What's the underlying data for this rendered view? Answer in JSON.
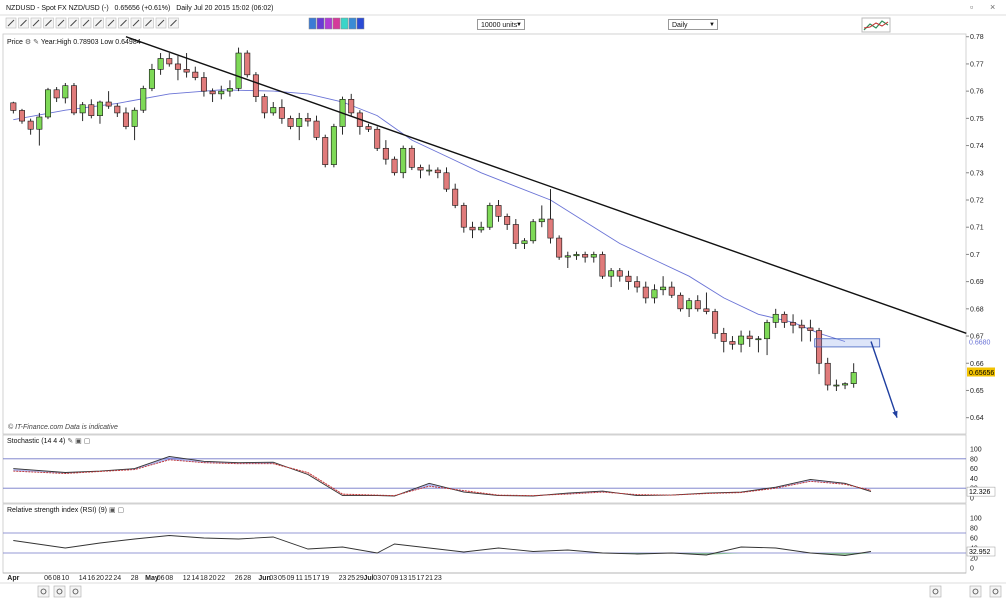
{
  "header": {
    "symbol": "NZDUSD - Spot FX NZD/USD (-)",
    "quote": "0.65656 (+0.61%)",
    "period_info": "Daily  Jul 20 2015 15:02 (06:02)"
  },
  "toolbar": {
    "units_value": "10000 units",
    "timeframe_value": "Daily",
    "tools": [
      "cursor-icon",
      "pointer-icon",
      "crosshair-icon",
      "line-icon",
      "hline-icon",
      "channel-icon",
      "text-icon",
      "fib-icon",
      "fan-icon",
      "gann-icon",
      "erase-icon",
      "palette-icon",
      "delete-icon",
      "settings-icon"
    ],
    "color_swatches": [
      "#3a7bd5",
      "#6a3ad5",
      "#b03ad5",
      "#d53a9a",
      "#3ad5c9",
      "#3a8bd5",
      "#2a4bd5"
    ]
  },
  "price_panel": {
    "label": "Price",
    "stats": "Year:High 0.78903 Low 0.64984",
    "watermark": "© IT-Finance.com  Data is indicative",
    "ma_value": "0.6680",
    "last_value": "0.65656"
  },
  "stoch_panel": {
    "label": "Stochastic (14 4 4)",
    "value": "12.326"
  },
  "rsi_panel": {
    "label": "Relative strength index (RSI) (9)",
    "value": "32.952"
  },
  "colors": {
    "bull": "#7ed957",
    "bear": "#e07b7b",
    "ma": "#6b74d6",
    "trend": "#111111",
    "arrow": "#1f3fa0",
    "current": "#f2c200"
  },
  "chart_data": {
    "type": "candlestick",
    "title": "NZDUSD - Spot FX NZD/USD (-)",
    "y_range": [
      0.634,
      0.781
    ],
    "y_ticks": [
      0.64,
      0.65,
      0.66,
      0.67,
      0.68,
      0.69,
      0.7,
      0.71,
      0.72,
      0.73,
      0.74,
      0.75,
      0.76,
      0.77,
      0.78
    ],
    "x_labels": [
      {
        "i": 0,
        "t": "Apr"
      },
      {
        "i": 4,
        "t": "06"
      },
      {
        "i": 5,
        "t": "08"
      },
      {
        "i": 6,
        "t": "10"
      },
      {
        "i": 8,
        "t": "14"
      },
      {
        "i": 9,
        "t": "16"
      },
      {
        "i": 10,
        "t": "20"
      },
      {
        "i": 11,
        "t": "22"
      },
      {
        "i": 12,
        "t": "24"
      },
      {
        "i": 14,
        "t": "28"
      },
      {
        "i": 16,
        "t": "May"
      },
      {
        "i": 17,
        "t": "06"
      },
      {
        "i": 18,
        "t": "08"
      },
      {
        "i": 20,
        "t": "12"
      },
      {
        "i": 21,
        "t": "14"
      },
      {
        "i": 22,
        "t": "18"
      },
      {
        "i": 23,
        "t": "20"
      },
      {
        "i": 24,
        "t": "22"
      },
      {
        "i": 26,
        "t": "26"
      },
      {
        "i": 27,
        "t": "28"
      },
      {
        "i": 29,
        "t": "Jun"
      },
      {
        "i": 30,
        "t": "03"
      },
      {
        "i": 31,
        "t": "05"
      },
      {
        "i": 32,
        "t": "09"
      },
      {
        "i": 33,
        "t": "11"
      },
      {
        "i": 34,
        "t": "15"
      },
      {
        "i": 35,
        "t": "17"
      },
      {
        "i": 36,
        "t": "19"
      },
      {
        "i": 38,
        "t": "23"
      },
      {
        "i": 39,
        "t": "25"
      },
      {
        "i": 40,
        "t": "29"
      },
      {
        "i": 41,
        "t": "Jul"
      },
      {
        "i": 42,
        "t": "03"
      },
      {
        "i": 43,
        "t": "07"
      },
      {
        "i": 44,
        "t": "09"
      },
      {
        "i": 45,
        "t": "13"
      },
      {
        "i": 46,
        "t": "15"
      },
      {
        "i": 47,
        "t": "17"
      },
      {
        "i": 48,
        "t": "21"
      },
      {
        "i": 49,
        "t": "23"
      }
    ],
    "candles": [
      [
        0.7557,
        0.7561,
        0.7518,
        0.7529
      ],
      [
        0.7529,
        0.7535,
        0.748,
        0.749
      ],
      [
        0.749,
        0.7499,
        0.744,
        0.746
      ],
      [
        0.746,
        0.752,
        0.74,
        0.7505
      ],
      [
        0.7505,
        0.7612,
        0.7497,
        0.7605
      ],
      [
        0.7605,
        0.7615,
        0.756,
        0.7575
      ],
      [
        0.7575,
        0.763,
        0.7555,
        0.762
      ],
      [
        0.762,
        0.763,
        0.7512,
        0.752
      ],
      [
        0.752,
        0.756,
        0.749,
        0.755
      ],
      [
        0.755,
        0.757,
        0.75,
        0.751
      ],
      [
        0.751,
        0.7565,
        0.748,
        0.756
      ],
      [
        0.756,
        0.76,
        0.7535,
        0.7545
      ],
      [
        0.7545,
        0.7555,
        0.7505,
        0.752
      ],
      [
        0.752,
        0.754,
        0.746,
        0.747
      ],
      [
        0.747,
        0.754,
        0.742,
        0.753
      ],
      [
        0.753,
        0.762,
        0.752,
        0.761
      ],
      [
        0.761,
        0.77,
        0.76,
        0.768
      ],
      [
        0.768,
        0.774,
        0.766,
        0.772
      ],
      [
        0.772,
        0.774,
        0.769,
        0.77
      ],
      [
        0.77,
        0.773,
        0.764,
        0.768
      ],
      [
        0.768,
        0.774,
        0.765,
        0.767
      ],
      [
        0.767,
        0.769,
        0.764,
        0.765
      ],
      [
        0.765,
        0.767,
        0.758,
        0.76
      ],
      [
        0.76,
        0.761,
        0.756,
        0.759
      ],
      [
        0.759,
        0.762,
        0.757,
        0.76
      ],
      [
        0.76,
        0.764,
        0.758,
        0.761
      ],
      [
        0.761,
        0.776,
        0.76,
        0.774
      ],
      [
        0.774,
        0.775,
        0.765,
        0.766
      ],
      [
        0.766,
        0.767,
        0.756,
        0.758
      ],
      [
        0.758,
        0.759,
        0.75,
        0.752
      ],
      [
        0.752,
        0.756,
        0.751,
        0.754
      ],
      [
        0.754,
        0.757,
        0.748,
        0.75
      ],
      [
        0.75,
        0.751,
        0.746,
        0.747
      ],
      [
        0.747,
        0.752,
        0.742,
        0.75
      ],
      [
        0.75,
        0.752,
        0.747,
        0.749
      ],
      [
        0.749,
        0.751,
        0.742,
        0.743
      ],
      [
        0.743,
        0.744,
        0.732,
        0.733
      ],
      [
        0.733,
        0.748,
        0.732,
        0.747
      ],
      [
        0.747,
        0.758,
        0.744,
        0.757
      ],
      [
        0.757,
        0.759,
        0.751,
        0.752
      ],
      [
        0.752,
        0.753,
        0.744,
        0.747
      ],
      [
        0.747,
        0.748,
        0.745,
        0.746
      ],
      [
        0.746,
        0.747,
        0.738,
        0.739
      ],
      [
        0.739,
        0.742,
        0.733,
        0.735
      ],
      [
        0.735,
        0.736,
        0.729,
        0.73
      ],
      [
        0.73,
        0.74,
        0.728,
        0.739
      ],
      [
        0.739,
        0.74,
        0.731,
        0.732
      ],
      [
        0.732,
        0.733,
        0.728,
        0.731
      ],
      [
        0.731,
        0.733,
        0.729,
        0.731
      ],
      [
        0.731,
        0.732,
        0.728,
        0.73
      ],
      [
        0.73,
        0.732,
        0.723,
        0.724
      ],
      [
        0.724,
        0.726,
        0.717,
        0.718
      ],
      [
        0.718,
        0.719,
        0.708,
        0.71
      ],
      [
        0.71,
        0.712,
        0.706,
        0.709
      ],
      [
        0.709,
        0.712,
        0.708,
        0.71
      ],
      [
        0.71,
        0.719,
        0.709,
        0.718
      ],
      [
        0.718,
        0.72,
        0.712,
        0.714
      ],
      [
        0.714,
        0.715,
        0.709,
        0.711
      ],
      [
        0.711,
        0.713,
        0.702,
        0.704
      ],
      [
        0.704,
        0.706,
        0.702,
        0.705
      ],
      [
        0.705,
        0.713,
        0.704,
        0.712
      ],
      [
        0.712,
        0.718,
        0.71,
        0.713
      ],
      [
        0.713,
        0.724,
        0.704,
        0.706
      ],
      [
        0.706,
        0.707,
        0.698,
        0.699
      ],
      [
        0.699,
        0.701,
        0.695,
        0.6995
      ],
      [
        0.6995,
        0.701,
        0.698,
        0.7
      ],
      [
        0.7,
        0.701,
        0.697,
        0.699
      ],
      [
        0.699,
        0.701,
        0.697,
        0.7
      ],
      [
        0.7,
        0.701,
        0.691,
        0.692
      ],
      [
        0.692,
        0.695,
        0.688,
        0.694
      ],
      [
        0.694,
        0.695,
        0.69,
        0.692
      ],
      [
        0.692,
        0.694,
        0.687,
        0.69
      ],
      [
        0.69,
        0.692,
        0.686,
        0.688
      ],
      [
        0.688,
        0.69,
        0.682,
        0.684
      ],
      [
        0.684,
        0.689,
        0.682,
        0.687
      ],
      [
        0.687,
        0.692,
        0.685,
        0.688
      ],
      [
        0.688,
        0.69,
        0.684,
        0.685
      ],
      [
        0.685,
        0.686,
        0.679,
        0.68
      ],
      [
        0.68,
        0.684,
        0.677,
        0.683
      ],
      [
        0.683,
        0.685,
        0.679,
        0.68
      ],
      [
        0.68,
        0.686,
        0.678,
        0.679
      ],
      [
        0.679,
        0.68,
        0.669,
        0.671
      ],
      [
        0.671,
        0.673,
        0.664,
        0.668
      ],
      [
        0.668,
        0.67,
        0.665,
        0.667
      ],
      [
        0.667,
        0.672,
        0.664,
        0.67
      ],
      [
        0.67,
        0.672,
        0.666,
        0.669
      ],
      [
        0.669,
        0.67,
        0.664,
        0.669
      ],
      [
        0.669,
        0.676,
        0.663,
        0.675
      ],
      [
        0.675,
        0.68,
        0.673,
        0.678
      ],
      [
        0.678,
        0.679,
        0.673,
        0.675
      ],
      [
        0.675,
        0.678,
        0.671,
        0.674
      ],
      [
        0.674,
        0.676,
        0.668,
        0.673
      ],
      [
        0.673,
        0.676,
        0.668,
        0.672
      ],
      [
        0.672,
        0.673,
        0.656,
        0.66
      ],
      [
        0.66,
        0.662,
        0.65,
        0.652
      ],
      [
        0.652,
        0.654,
        0.6498,
        0.652
      ],
      [
        0.652,
        0.653,
        0.6505,
        0.6525
      ],
      [
        0.6525,
        0.66,
        0.651,
        0.6566
      ]
    ],
    "ma_line": [
      [
        0,
        0.7495
      ],
      [
        6,
        0.753
      ],
      [
        12,
        0.7555
      ],
      [
        18,
        0.759
      ],
      [
        24,
        0.7605
      ],
      [
        30,
        0.76
      ],
      [
        34,
        0.759
      ],
      [
        38,
        0.756
      ],
      [
        42,
        0.751
      ],
      [
        46,
        0.742
      ],
      [
        50,
        0.736
      ],
      [
        54,
        0.73
      ],
      [
        58,
        0.725
      ],
      [
        62,
        0.72
      ],
      [
        66,
        0.712
      ],
      [
        70,
        0.704
      ],
      [
        74,
        0.698
      ],
      [
        78,
        0.692
      ],
      [
        82,
        0.684
      ],
      [
        86,
        0.678
      ],
      [
        90,
        0.675
      ],
      [
        93,
        0.671
      ],
      [
        96,
        0.668
      ]
    ],
    "trendline": [
      [
        13,
        0.78
      ],
      [
        110,
        0.671
      ]
    ],
    "target_box": {
      "x0": 92.5,
      "x1": 100,
      "y0": 0.669,
      "y1": 0.666
    },
    "projection_arrow": [
      [
        99,
        0.668
      ],
      [
        102,
        0.64
      ]
    ],
    "stochastic": {
      "range": [
        0,
        100
      ],
      "levels": [
        20,
        80
      ],
      "ticks": [
        0,
        20,
        40,
        60,
        80,
        100
      ],
      "k": [
        [
          0,
          60
        ],
        [
          6,
          52
        ],
        [
          10,
          55
        ],
        [
          14,
          60
        ],
        [
          18,
          85
        ],
        [
          22,
          75
        ],
        [
          26,
          72
        ],
        [
          30,
          73
        ],
        [
          34,
          48
        ],
        [
          38,
          5
        ],
        [
          42,
          5
        ],
        [
          44,
          4
        ],
        [
          48,
          30
        ],
        [
          52,
          12
        ],
        [
          56,
          5
        ],
        [
          60,
          4
        ],
        [
          64,
          10
        ],
        [
          68,
          14
        ],
        [
          72,
          5
        ],
        [
          76,
          6
        ],
        [
          80,
          10
        ],
        [
          84,
          12
        ],
        [
          88,
          22
        ],
        [
          92,
          38
        ],
        [
          96,
          30
        ],
        [
          99,
          13
        ]
      ],
      "d": [
        [
          0,
          55
        ],
        [
          6,
          50
        ],
        [
          10,
          54
        ],
        [
          14,
          58
        ],
        [
          18,
          78
        ],
        [
          22,
          72
        ],
        [
          26,
          70
        ],
        [
          30,
          70
        ],
        [
          34,
          52
        ],
        [
          38,
          8
        ],
        [
          42,
          6
        ],
        [
          44,
          5
        ],
        [
          48,
          24
        ],
        [
          52,
          15
        ],
        [
          56,
          6
        ],
        [
          60,
          5
        ],
        [
          64,
          8
        ],
        [
          68,
          12
        ],
        [
          72,
          7
        ],
        [
          76,
          6
        ],
        [
          80,
          9
        ],
        [
          84,
          11
        ],
        [
          88,
          20
        ],
        [
          92,
          34
        ],
        [
          96,
          28
        ],
        [
          99,
          16
        ]
      ]
    },
    "rsi": {
      "range": [
        0,
        100
      ],
      "levels": [
        30,
        70
      ],
      "ticks": [
        0,
        20,
        40,
        60,
        80,
        100
      ],
      "values": [
        [
          0,
          55
        ],
        [
          6,
          40
        ],
        [
          10,
          50
        ],
        [
          14,
          58
        ],
        [
          18,
          65
        ],
        [
          22,
          60
        ],
        [
          26,
          58
        ],
        [
          30,
          62
        ],
        [
          34,
          38
        ],
        [
          38,
          42
        ],
        [
          42,
          30
        ],
        [
          44,
          48
        ],
        [
          48,
          40
        ],
        [
          52,
          32
        ],
        [
          56,
          40
        ],
        [
          60,
          33
        ],
        [
          64,
          36
        ],
        [
          68,
          30
        ],
        [
          72,
          28
        ],
        [
          76,
          30
        ],
        [
          80,
          26
        ],
        [
          84,
          42
        ],
        [
          88,
          40
        ],
        [
          92,
          30
        ],
        [
          96,
          25
        ],
        [
          99,
          33
        ]
      ]
    }
  }
}
